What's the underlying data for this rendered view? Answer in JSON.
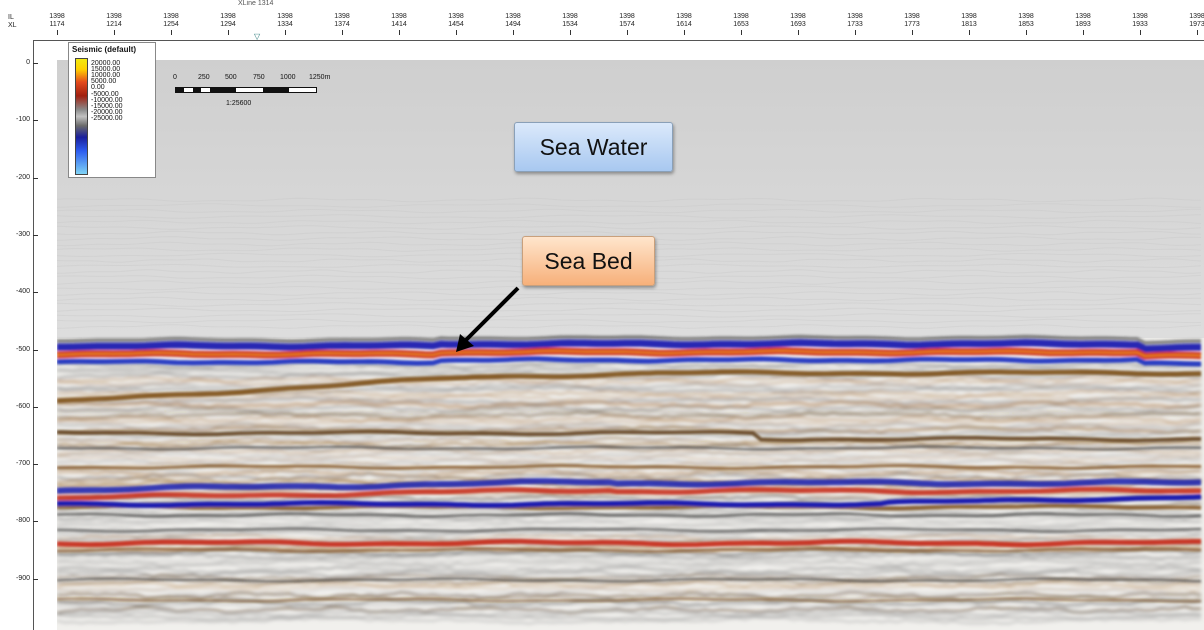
{
  "xaxis": {
    "row_labels": [
      "IL",
      "XL"
    ],
    "xline_label": "XLine 1314",
    "marker": "▽",
    "ticks": [
      {
        "il": "1398",
        "xl": "1174"
      },
      {
        "il": "1398",
        "xl": "1214"
      },
      {
        "il": "1398",
        "xl": "1254"
      },
      {
        "il": "1398",
        "xl": "1294"
      },
      {
        "il": "1398",
        "xl": "1334"
      },
      {
        "il": "1398",
        "xl": "1374"
      },
      {
        "il": "1398",
        "xl": "1414"
      },
      {
        "il": "1398",
        "xl": "1454"
      },
      {
        "il": "1398",
        "xl": "1494"
      },
      {
        "il": "1398",
        "xl": "1534"
      },
      {
        "il": "1398",
        "xl": "1574"
      },
      {
        "il": "1398",
        "xl": "1614"
      },
      {
        "il": "1398",
        "xl": "1653"
      },
      {
        "il": "1398",
        "xl": "1693"
      },
      {
        "il": "1398",
        "xl": "1733"
      },
      {
        "il": "1398",
        "xl": "1773"
      },
      {
        "il": "1398",
        "xl": "1813"
      },
      {
        "il": "1398",
        "xl": "1853"
      },
      {
        "il": "1398",
        "xl": "1893"
      },
      {
        "il": "1398",
        "xl": "1933"
      },
      {
        "il": "1398",
        "xl": "1973"
      }
    ]
  },
  "yaxis": {
    "ticks": [
      "0",
      "-100",
      "-200",
      "-300",
      "-400",
      "-500",
      "-600",
      "-700",
      "-800",
      "-900"
    ]
  },
  "legend": {
    "title": "Seismic (default)",
    "values": [
      "20000.00",
      "15000.00",
      "10000.00",
      "5000.00",
      "0.00",
      "-5000.00",
      "-10000.00",
      "-15000.00",
      "-20000.00",
      "-25000.00"
    ],
    "colors": {
      "positive_high": "#f2ea10",
      "positive": "#e44a1c",
      "zero": "#c2c2c2",
      "negative": "#1a1f9c",
      "negative_low": "#7fd3f5"
    }
  },
  "scalebar": {
    "labels": [
      "0",
      "250",
      "500",
      "750",
      "1000",
      "1250m"
    ],
    "ratio": "1:25600"
  },
  "annotations": {
    "sea_water": "Sea Water",
    "sea_bed": "Sea Bed"
  }
}
